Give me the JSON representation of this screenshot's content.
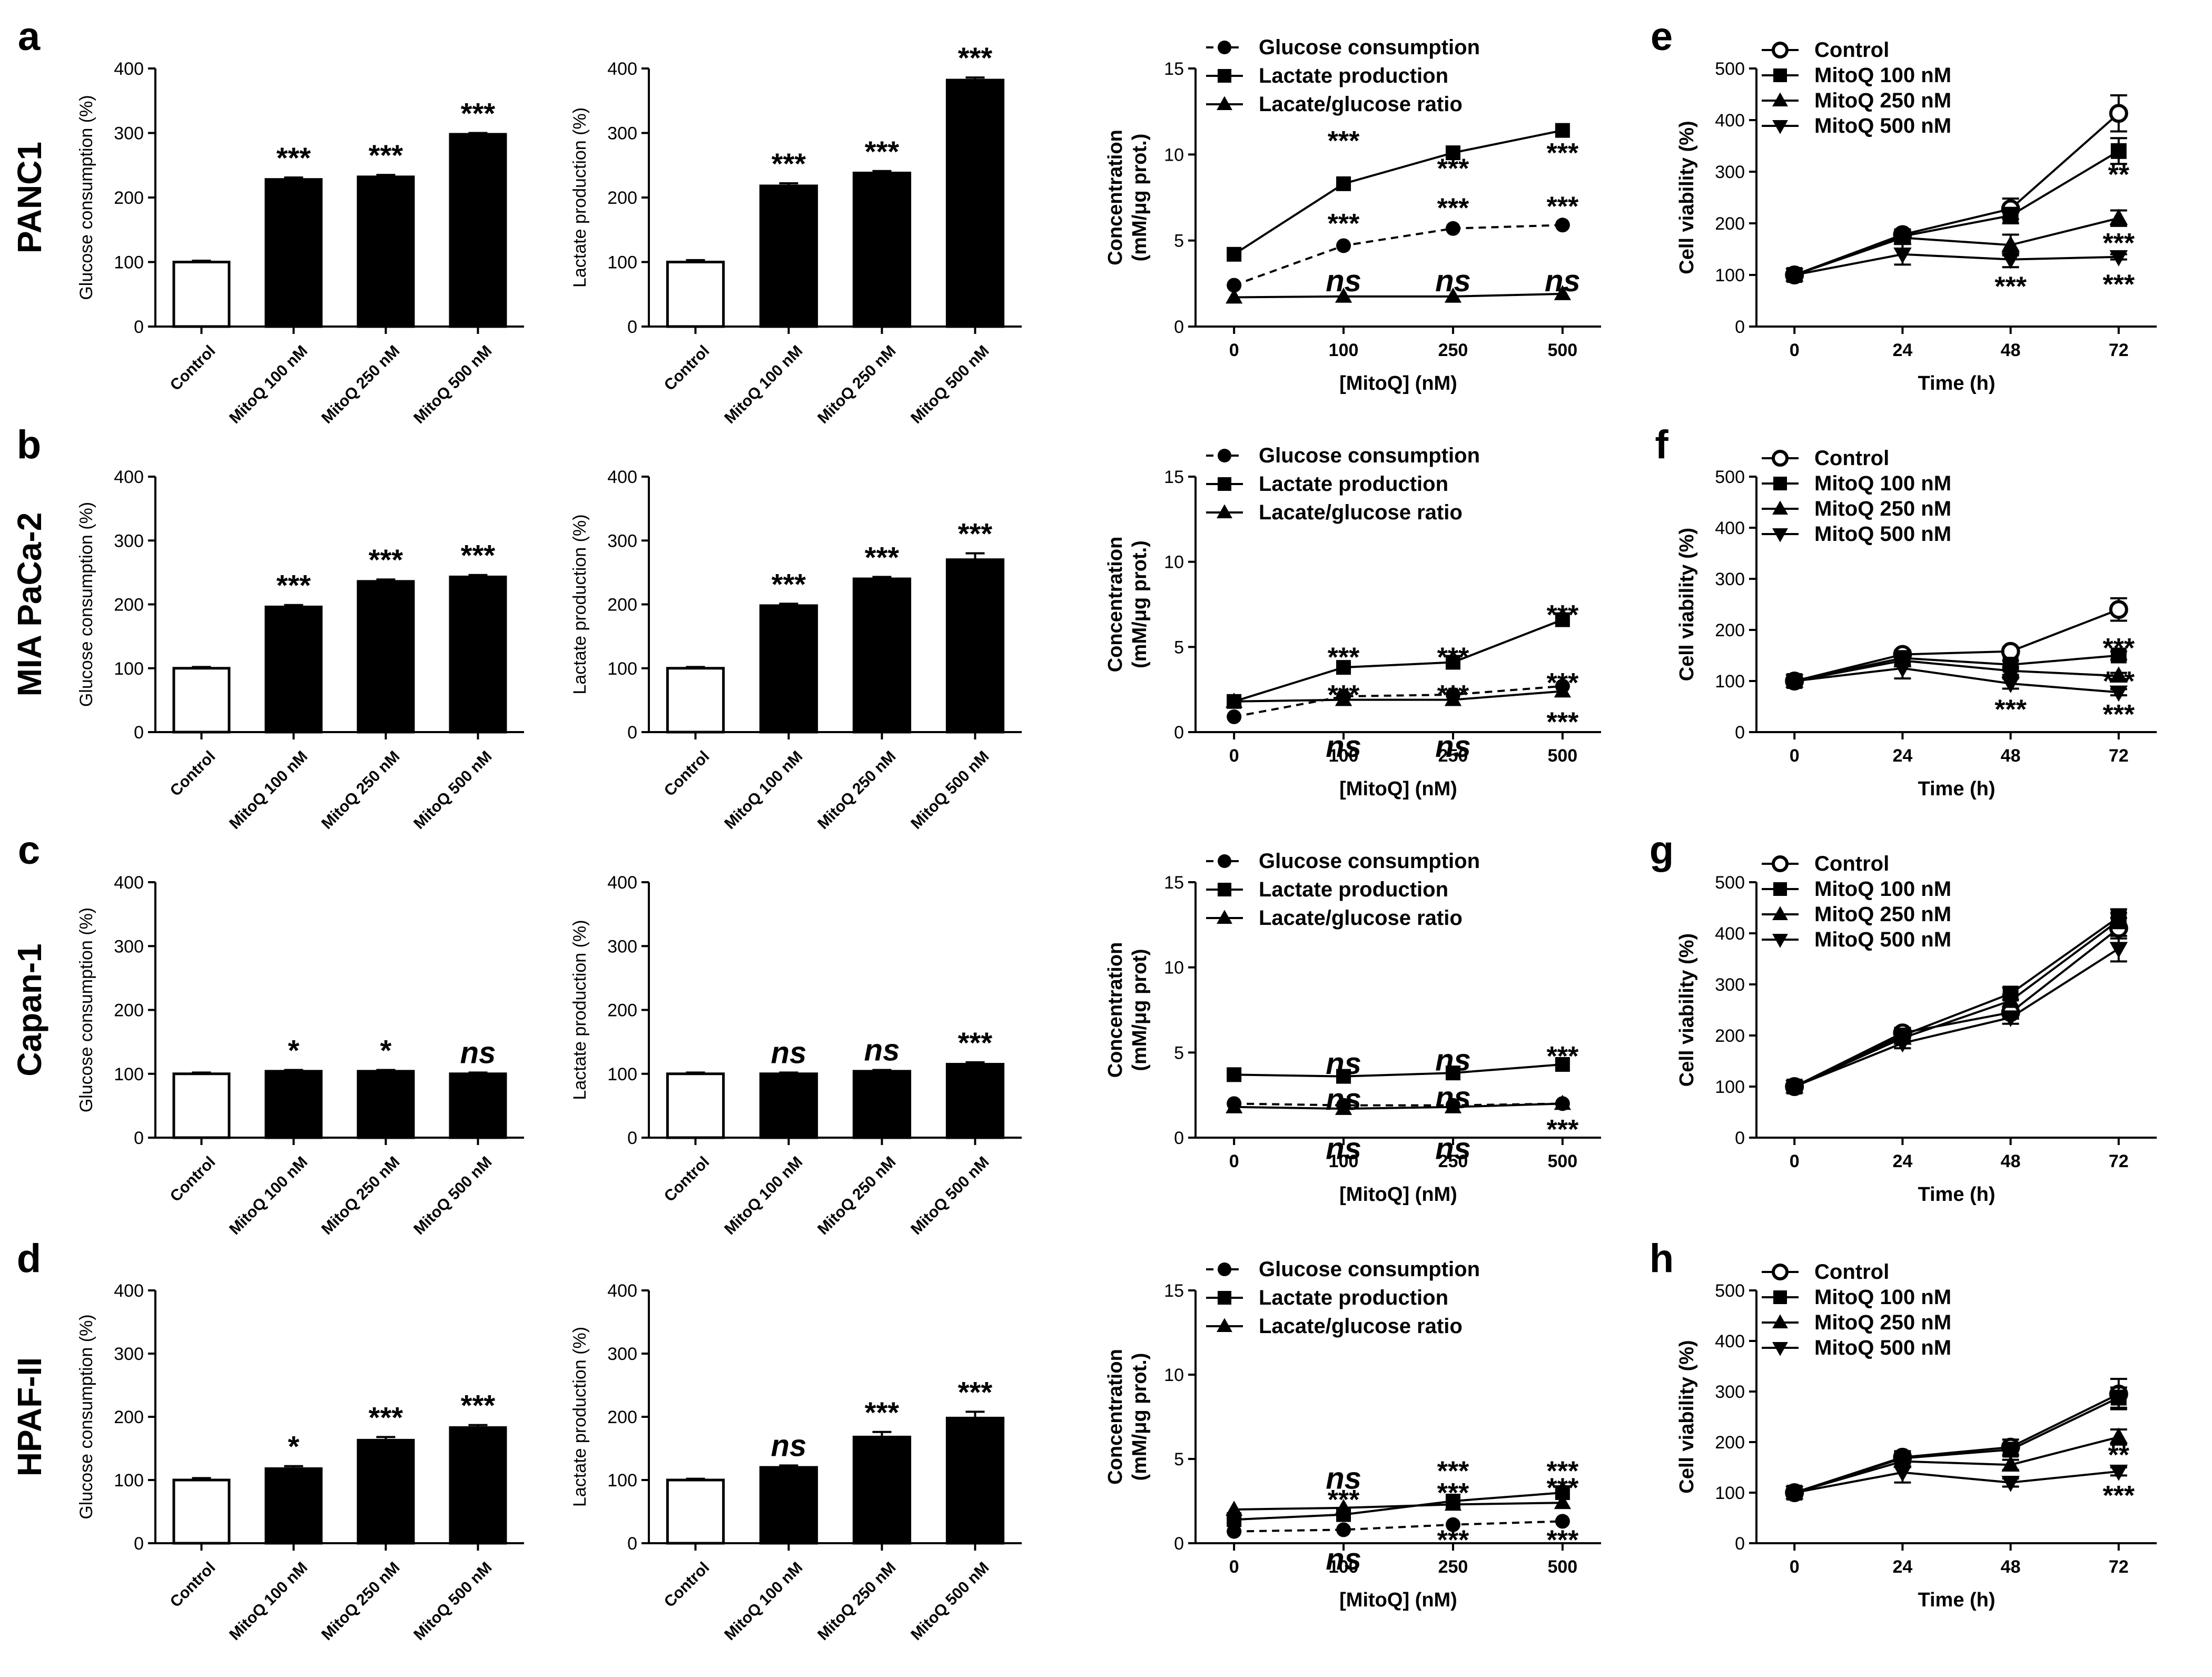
{
  "figure": {
    "panel_letters": [
      "a",
      "b",
      "c",
      "d",
      "e",
      "f",
      "g",
      "h"
    ],
    "row_labels": [
      "PANC1",
      "MIA PaCa-2",
      "Capan-1",
      "HPAF-II"
    ],
    "colors": {
      "ink": "#000000",
      "control_fill": "#ffffff",
      "treated_fill": "#000000",
      "background": "#ffffff"
    }
  },
  "chart_data": [
    {
      "id": "a-glucose",
      "type": "bar",
      "ylabel": "Glucose consumption (%)",
      "ylim": [
        0,
        400
      ],
      "yticks": [
        0,
        100,
        200,
        300,
        400
      ],
      "categories": [
        "Control",
        "MitoQ 100 nM",
        "MitoQ 250 nM",
        "MitoQ 500 nM"
      ],
      "values": [
        100,
        228,
        232,
        298
      ],
      "errors": [
        2,
        3,
        3,
        2
      ],
      "significance": [
        "",
        "***",
        "***",
        "***"
      ]
    },
    {
      "id": "a-lactate",
      "type": "bar",
      "ylabel": "Lactate production (%)",
      "ylim": [
        0,
        400
      ],
      "yticks": [
        0,
        100,
        200,
        300,
        400
      ],
      "categories": [
        "Control",
        "MitoQ 100 nM",
        "MitoQ 250 nM",
        "MitoQ 500 nM"
      ],
      "values": [
        100,
        218,
        238,
        382
      ],
      "errors": [
        3,
        4,
        3,
        4
      ],
      "significance": [
        "",
        "***",
        "***",
        "***"
      ]
    },
    {
      "id": "a-conc",
      "type": "line",
      "xlabel": "[MitoQ] (nM)",
      "ylabel": "Concentration (mM/μg prot.)",
      "ylim": [
        0,
        15
      ],
      "yticks": [
        0,
        5,
        10,
        15
      ],
      "x": [
        "0",
        "100",
        "250",
        "500"
      ],
      "series": [
        {
          "name": "Glucose consumption",
          "marker": "circle",
          "dashed": true,
          "values": [
            2.4,
            4.7,
            5.7,
            5.9
          ]
        },
        {
          "name": "Lactate production",
          "marker": "square",
          "dashed": false,
          "values": [
            4.2,
            8.3,
            10.1,
            11.4
          ]
        },
        {
          "name": "Lacate/glucose ratio",
          "marker": "triangle-up",
          "dashed": false,
          "values": [
            1.7,
            1.75,
            1.75,
            1.9
          ]
        }
      ],
      "annotations": [
        {
          "x": "100",
          "y": 10.8,
          "text": "***"
        },
        {
          "x": "250",
          "y": 9.2,
          "text": "***"
        },
        {
          "x": "500",
          "y": 10.1,
          "text": "***"
        },
        {
          "x": "100",
          "y": 6.0,
          "text": "***"
        },
        {
          "x": "250",
          "y": 6.9,
          "text": "***"
        },
        {
          "x": "500",
          "y": 7.0,
          "text": "***"
        },
        {
          "x": "100",
          "y": 2.6,
          "text": "ns"
        },
        {
          "x": "250",
          "y": 2.6,
          "text": "ns"
        },
        {
          "x": "500",
          "y": 2.6,
          "text": "ns"
        }
      ]
    },
    {
      "id": "e-viability",
      "type": "line",
      "xlabel": "Time (h)",
      "ylabel": "Cell viability (%)",
      "ylim": [
        0,
        500
      ],
      "yticks": [
        0,
        100,
        200,
        300,
        400,
        500
      ],
      "x": [
        "0",
        "24",
        "48",
        "72"
      ],
      "series": [
        {
          "name": "Control",
          "marker": "open-circle",
          "values": [
            100,
            178,
            228,
            413
          ],
          "errors": [
            0,
            10,
            20,
            35
          ]
        },
        {
          "name": "MitoQ 100 nM",
          "marker": "square",
          "values": [
            100,
            175,
            215,
            340
          ],
          "errors": [
            0,
            10,
            15,
            25
          ]
        },
        {
          "name": "MitoQ 250 nM",
          "marker": "triangle-up",
          "values": [
            100,
            172,
            158,
            210
          ],
          "errors": [
            0,
            10,
            20,
            15
          ]
        },
        {
          "name": "MitoQ 500 nM",
          "marker": "triangle-down",
          "values": [
            100,
            140,
            130,
            135
          ],
          "errors": [
            0,
            20,
            15,
            5
          ]
        }
      ],
      "annotations": [
        {
          "x": "72",
          "y": 295,
          "text": "**"
        },
        {
          "x": "48",
          "y": 140,
          "text": "*"
        },
        {
          "x": "72",
          "y": 162,
          "text": "***"
        },
        {
          "x": "48",
          "y": 78,
          "text": "***"
        },
        {
          "x": "72",
          "y": 82,
          "text": "***"
        }
      ]
    },
    {
      "id": "b-glucose",
      "type": "bar",
      "ylabel": "Glucose consumption (%)",
      "ylim": [
        0,
        400
      ],
      "yticks": [
        0,
        100,
        200,
        300,
        400
      ],
      "categories": [
        "Control",
        "MitoQ 100 nM",
        "MitoQ 250 nM",
        "MitoQ 500 nM"
      ],
      "values": [
        100,
        196,
        236,
        243
      ],
      "errors": [
        2,
        3,
        3,
        3
      ],
      "significance": [
        "",
        "***",
        "***",
        "***"
      ]
    },
    {
      "id": "b-lactate",
      "type": "bar",
      "ylabel": "Lactate production (%)",
      "ylim": [
        0,
        400
      ],
      "yticks": [
        0,
        100,
        200,
        300,
        400
      ],
      "categories": [
        "Control",
        "MitoQ 100 nM",
        "MitoQ 250 nM",
        "MitoQ 500 nM"
      ],
      "values": [
        100,
        198,
        240,
        270
      ],
      "errors": [
        2,
        3,
        3,
        10
      ],
      "significance": [
        "",
        "***",
        "***",
        "***"
      ]
    },
    {
      "id": "b-conc",
      "type": "line",
      "xlabel": "[MitoQ] (nM)",
      "ylabel": "Concentration (mM/μg prot.)",
      "ylim": [
        0,
        15
      ],
      "yticks": [
        0,
        5,
        10,
        15
      ],
      "x": [
        "0",
        "100",
        "250",
        "500"
      ],
      "series": [
        {
          "name": "Glucose consumption",
          "marker": "circle",
          "dashed": true,
          "values": [
            0.9,
            2.1,
            2.2,
            2.7
          ]
        },
        {
          "name": "Lactate production",
          "marker": "square",
          "dashed": false,
          "values": [
            1.8,
            3.8,
            4.1,
            6.6
          ]
        },
        {
          "name": "Lacate/glucose ratio",
          "marker": "triangle-up",
          "dashed": false,
          "values": [
            1.8,
            1.9,
            1.9,
            2.4
          ]
        }
      ],
      "annotations": [
        {
          "x": "100",
          "y": 4.4,
          "text": "***"
        },
        {
          "x": "250",
          "y": 4.4,
          "text": "***"
        },
        {
          "x": "500",
          "y": 6.9,
          "text": "***"
        },
        {
          "x": "100",
          "y": 2.2,
          "text": "***"
        },
        {
          "x": "250",
          "y": 2.2,
          "text": "***"
        },
        {
          "x": "500",
          "y": 2.9,
          "text": "***"
        },
        {
          "x": "100",
          "y": -0.9,
          "text": "ns"
        },
        {
          "x": "250",
          "y": -0.9,
          "text": "ns"
        },
        {
          "x": "500",
          "y": 0.6,
          "text": "***"
        }
      ]
    },
    {
      "id": "f-viability",
      "type": "line",
      "xlabel": "Time (h)",
      "ylabel": "Cell viability (%)",
      "ylim": [
        0,
        500
      ],
      "yticks": [
        0,
        100,
        200,
        300,
        400,
        500
      ],
      "x": [
        "0",
        "24",
        "48",
        "72"
      ],
      "series": [
        {
          "name": "Control",
          "marker": "open-circle",
          "values": [
            100,
            152,
            158,
            240
          ],
          "errors": [
            0,
            8,
            8,
            22
          ]
        },
        {
          "name": "MitoQ 100 nM",
          "marker": "square",
          "values": [
            100,
            145,
            132,
            150
          ],
          "errors": [
            0,
            8,
            8,
            8
          ]
        },
        {
          "name": "MitoQ 250 nM",
          "marker": "triangle-up",
          "values": [
            100,
            140,
            120,
            110
          ],
          "errors": [
            0,
            8,
            8,
            6
          ]
        },
        {
          "name": "MitoQ 500 nM",
          "marker": "triangle-down",
          "values": [
            100,
            125,
            95,
            78
          ],
          "errors": [
            0,
            20,
            10,
            6
          ]
        }
      ],
      "annotations": [
        {
          "x": "72",
          "y": 165,
          "text": "***"
        },
        {
          "x": "72",
          "y": 100,
          "text": "***"
        },
        {
          "x": "48",
          "y": 45,
          "text": "***"
        },
        {
          "x": "72",
          "y": 35,
          "text": "***"
        }
      ]
    },
    {
      "id": "c-glucose",
      "type": "bar",
      "ylabel": "Glucose consumption (%)",
      "ylim": [
        0,
        400
      ],
      "yticks": [
        0,
        100,
        200,
        300,
        400
      ],
      "categories": [
        "Control",
        "MitoQ 100 nM",
        "MitoQ 250 nM",
        "MitoQ 500 nM"
      ],
      "values": [
        100,
        104,
        104,
        100
      ],
      "errors": [
        2,
        2,
        2,
        2
      ],
      "significance": [
        "",
        "*",
        "*",
        "ns"
      ]
    },
    {
      "id": "c-lactate",
      "type": "bar",
      "ylabel": "Lactate production (%)",
      "ylim": [
        0,
        400
      ],
      "yticks": [
        0,
        100,
        200,
        300,
        400
      ],
      "categories": [
        "Control",
        "MitoQ 100 nM",
        "MitoQ 250 nM",
        "MitoQ 500 nM"
      ],
      "values": [
        100,
        100,
        104,
        115
      ],
      "errors": [
        2,
        2,
        2,
        3
      ],
      "significance": [
        "",
        "ns",
        "ns",
        "***"
      ]
    },
    {
      "id": "c-conc",
      "type": "line",
      "xlabel": "[MitoQ] (nM)",
      "ylabel": "Concentration (mM/μg prot)",
      "ylim": [
        0,
        15
      ],
      "yticks": [
        0,
        5,
        10,
        15
      ],
      "x": [
        "0",
        "100",
        "250",
        "500"
      ],
      "series": [
        {
          "name": "Glucose consumption",
          "marker": "circle",
          "dashed": true,
          "values": [
            2.0,
            1.9,
            1.9,
            2.0
          ]
        },
        {
          "name": "Lactate production",
          "marker": "square",
          "dashed": false,
          "values": [
            3.7,
            3.6,
            3.8,
            4.3
          ]
        },
        {
          "name": "Lacate/glucose ratio",
          "marker": "triangle-up",
          "dashed": false,
          "values": [
            1.8,
            1.7,
            1.8,
            2.0
          ]
        }
      ],
      "annotations": [
        {
          "x": "100",
          "y": 4.3,
          "text": "ns"
        },
        {
          "x": "250",
          "y": 4.5,
          "text": "ns"
        },
        {
          "x": "500",
          "y": 4.8,
          "text": "***"
        },
        {
          "x": "100",
          "y": 2.2,
          "text": "ns"
        },
        {
          "x": "250",
          "y": 2.3,
          "text": "ns"
        },
        {
          "x": "100",
          "y": -0.7,
          "text": "ns"
        },
        {
          "x": "250",
          "y": -0.7,
          "text": "ns"
        },
        {
          "x": "500",
          "y": 0.5,
          "text": "***"
        }
      ]
    },
    {
      "id": "g-viability",
      "type": "line",
      "xlabel": "Time (h)",
      "ylabel": "Cell viability (%)",
      "ylim": [
        0,
        500
      ],
      "yticks": [
        0,
        100,
        200,
        300,
        400,
        500
      ],
      "x": [
        "0",
        "24",
        "48",
        "72"
      ],
      "series": [
        {
          "name": "Control",
          "marker": "open-circle",
          "values": [
            100,
            205,
            245,
            410
          ],
          "errors": [
            0,
            10,
            12,
            20
          ]
        },
        {
          "name": "MitoQ 100 nM",
          "marker": "square",
          "values": [
            100,
            200,
            282,
            432
          ],
          "errors": [
            0,
            10,
            12,
            15
          ]
        },
        {
          "name": "MitoQ 250 nM",
          "marker": "triangle-up",
          "values": [
            100,
            195,
            268,
            425
          ],
          "errors": [
            0,
            10,
            12,
            15
          ]
        },
        {
          "name": "MitoQ 500 nM",
          "marker": "triangle-down",
          "values": [
            100,
            185,
            235,
            370
          ],
          "errors": [
            0,
            10,
            12,
            25
          ]
        }
      ],
      "annotations": []
    },
    {
      "id": "d-glucose",
      "type": "bar",
      "ylabel": "Glucose consumption (%)",
      "ylim": [
        0,
        400
      ],
      "yticks": [
        0,
        100,
        200,
        300,
        400
      ],
      "categories": [
        "Control",
        "MitoQ 100 nM",
        "MitoQ 250 nM",
        "MitoQ 500 nM"
      ],
      "values": [
        100,
        118,
        163,
        183
      ],
      "errors": [
        3,
        4,
        5,
        4
      ],
      "significance": [
        "",
        "*",
        "***",
        "***"
      ]
    },
    {
      "id": "d-lactate",
      "type": "bar",
      "ylabel": "Lactate production (%)",
      "ylim": [
        0,
        400
      ],
      "yticks": [
        0,
        100,
        200,
        300,
        400
      ],
      "categories": [
        "Control",
        "MitoQ 100 nM",
        "MitoQ 250 nM",
        "MitoQ 500 nM"
      ],
      "values": [
        100,
        120,
        168,
        198
      ],
      "errors": [
        2,
        3,
        8,
        10
      ],
      "significance": [
        "",
        "ns",
        "***",
        "***"
      ]
    },
    {
      "id": "d-conc",
      "type": "line",
      "xlabel": "[MitoQ] (nM)",
      "ylabel": "Concentration (mM/μg prot.)",
      "ylim": [
        0,
        15
      ],
      "yticks": [
        0,
        5,
        10,
        15
      ],
      "x": [
        "0",
        "100",
        "250",
        "500"
      ],
      "series": [
        {
          "name": "Glucose consumption",
          "marker": "circle",
          "dashed": true,
          "values": [
            0.7,
            0.8,
            1.1,
            1.3
          ]
        },
        {
          "name": "Lactate production",
          "marker": "square",
          "dashed": false,
          "values": [
            1.4,
            1.7,
            2.5,
            3.0
          ]
        },
        {
          "name": "Lacate/glucose ratio",
          "marker": "triangle-up",
          "dashed": false,
          "values": [
            2.0,
            2.1,
            2.3,
            2.4
          ]
        }
      ],
      "annotations": [
        {
          "x": "100",
          "y": 3.8,
          "text": "ns"
        },
        {
          "x": "250",
          "y": 4.3,
          "text": "***"
        },
        {
          "x": "500",
          "y": 4.3,
          "text": "***"
        },
        {
          "x": "100",
          "y": 2.6,
          "text": "***"
        },
        {
          "x": "250",
          "y": 3.0,
          "text": "***"
        },
        {
          "x": "500",
          "y": 3.3,
          "text": "***"
        },
        {
          "x": "100",
          "y": -1.0,
          "text": "ns"
        },
        {
          "x": "250",
          "y": 0.2,
          "text": "***"
        },
        {
          "x": "500",
          "y": 0.2,
          "text": "***"
        }
      ]
    },
    {
      "id": "h-viability",
      "type": "line",
      "xlabel": "Time (h)",
      "ylabel": "Cell viability (%)",
      "ylim": [
        0,
        500
      ],
      "yticks": [
        0,
        100,
        200,
        300,
        400,
        500
      ],
      "x": [
        "0",
        "24",
        "48",
        "72"
      ],
      "series": [
        {
          "name": "Control",
          "marker": "open-circle",
          "values": [
            100,
            170,
            190,
            295
          ],
          "errors": [
            0,
            12,
            15,
            30
          ]
        },
        {
          "name": "MitoQ 100 nM",
          "marker": "square",
          "values": [
            100,
            168,
            185,
            288
          ],
          "errors": [
            0,
            10,
            12,
            20
          ]
        },
        {
          "name": "MitoQ 250 nM",
          "marker": "triangle-up",
          "values": [
            100,
            162,
            155,
            210
          ],
          "errors": [
            0,
            10,
            10,
            15
          ]
        },
        {
          "name": "MitoQ 500 nM",
          "marker": "triangle-down",
          "values": [
            100,
            140,
            120,
            142
          ],
          "errors": [
            0,
            20,
            8,
            8
          ]
        }
      ],
      "annotations": [
        {
          "x": "72",
          "y": 175,
          "text": "**"
        },
        {
          "x": "72",
          "y": 95,
          "text": "***"
        }
      ]
    }
  ]
}
